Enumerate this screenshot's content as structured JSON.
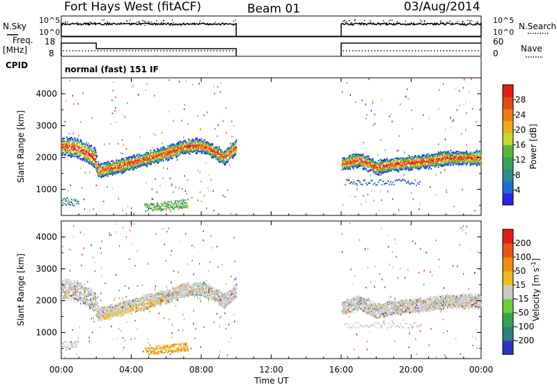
{
  "header": {
    "station": "Fort Hays West (fitACF)",
    "beam": "Beam 01",
    "date": "03/Aug/2014"
  },
  "top_panels": {
    "nsky_label": "N.Sky",
    "nsky_ticks": [
      "10^5",
      "10^0"
    ],
    "nsearch_label": "N.Search",
    "nsearch_ticks": [
      "10^5",
      "10^0"
    ],
    "freq_label": "Freq.",
    "freq_unit": "[MHz]",
    "freq_ticks": [
      "18",
      "8"
    ],
    "nave_label": "Nave",
    "nave_ticks": [
      "60",
      "0"
    ],
    "cpid_label": "CPID",
    "cpid_text": "normal (fast) 151 IF"
  },
  "chart_data": [
    {
      "type": "heatmap",
      "name": "power",
      "ylabel": "Slant Range [km]",
      "yticks": [
        "4000",
        "3000",
        "2000",
        "1000"
      ],
      "ylim": [
        180,
        4500
      ],
      "xlim_hours": [
        0,
        24
      ],
      "data_gap_hours": [
        10,
        16
      ],
      "colorbar": {
        "label": "Power [dB]",
        "ticks": [
          "28",
          "24",
          "20",
          "16",
          "12",
          "8",
          "4"
        ],
        "colors": [
          "#2626e0",
          "#1a6ed2",
          "#2f8a8a",
          "#3aa35a",
          "#5ab83a",
          "#c7d62d",
          "#f3a91d",
          "#ef7a14",
          "#e34a10",
          "#e01e10"
        ]
      },
      "echo_band": [
        {
          "hour": 0.0,
          "range": 2380
        },
        {
          "hour": 1.0,
          "range": 2300
        },
        {
          "hour": 1.9,
          "range": 2000
        },
        {
          "hour": 2.1,
          "range": 1600
        },
        {
          "hour": 3.0,
          "range": 1700
        },
        {
          "hour": 4.0,
          "range": 1850
        },
        {
          "hour": 5.0,
          "range": 2000
        },
        {
          "hour": 6.0,
          "range": 2150
        },
        {
          "hour": 7.0,
          "range": 2350
        },
        {
          "hour": 8.0,
          "range": 2400
        },
        {
          "hour": 8.9,
          "range": 2150
        },
        {
          "hour": 9.3,
          "range": 2000
        },
        {
          "hour": 10.0,
          "range": 2350
        },
        {
          "hour": 16.0,
          "range": 1800
        },
        {
          "hour": 17.0,
          "range": 1950
        },
        {
          "hour": 18.0,
          "range": 1700
        },
        {
          "hour": 19.0,
          "range": 1800
        },
        {
          "hour": 20.0,
          "range": 1850
        },
        {
          "hour": 21.0,
          "range": 1900
        },
        {
          "hour": 22.0,
          "range": 2000
        },
        {
          "hour": 24.0,
          "range": 2000
        }
      ]
    },
    {
      "type": "heatmap",
      "name": "velocity",
      "ylabel": "Slant Range [km]",
      "yticks": [
        "4000",
        "3000",
        "2000",
        "1000"
      ],
      "ylim": [
        180,
        4500
      ],
      "xlim_hours": [
        0,
        24
      ],
      "colorbar": {
        "label": "Velocity [m s-1]",
        "ticks": [
          "200",
          "100",
          "50",
          "15",
          "-15",
          "-50",
          "-100",
          "-200"
        ],
        "colors": [
          "#2a35c8",
          "#2f7f7f",
          "#37a24f",
          "#6ccd3a",
          "#c9c9c9",
          "#f0ba1c",
          "#ef8a12",
          "#e85510",
          "#e01e10"
        ]
      },
      "xticks": [
        "00:00",
        "04:00",
        "08:00",
        "12:00",
        "16:00",
        "20:00",
        "00:00"
      ],
      "xlabel": "Time UT"
    }
  ]
}
